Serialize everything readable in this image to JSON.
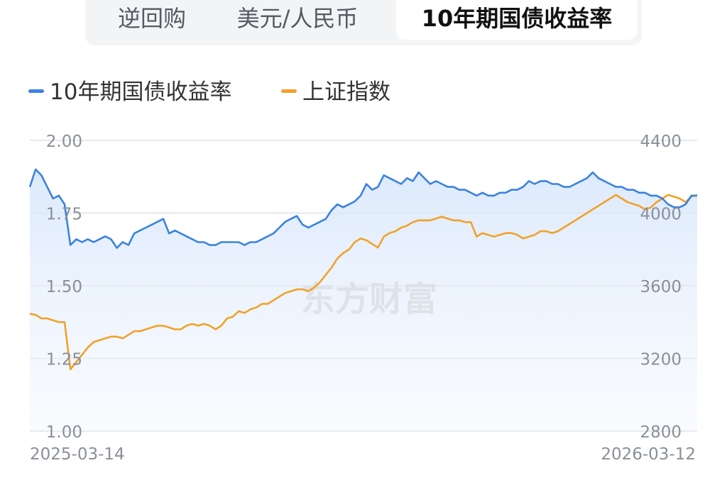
{
  "tabs": [
    {
      "label": "逆回购",
      "active": false
    },
    {
      "label": "美元/人民币",
      "active": false
    },
    {
      "label": "10年期国债收益率",
      "active": true
    }
  ],
  "watermark": "东方财富",
  "colors": {
    "yield": "#3b82e0",
    "index": "#f2a12a",
    "grid": "#e6e8ec"
  },
  "chart_data": {
    "type": "line",
    "legend_placement": "top-left",
    "grid": true,
    "x_start_label": "2025-03-14",
    "x_end_label": "2026-03-12",
    "y_left": {
      "ticks": [
        "2.00",
        "1.75",
        "1.50",
        "1.25",
        "1.00"
      ],
      "range": [
        1.0,
        2.0
      ]
    },
    "y_right": {
      "ticks": [
        "4400",
        "4000",
        "3600",
        "3200",
        "2800"
      ],
      "range": [
        2800,
        4400
      ]
    },
    "series": [
      {
        "name": "10年期国债收益率",
        "axis": "left",
        "color": "#3b82e0",
        "values": [
          1.84,
          1.9,
          1.88,
          1.84,
          1.8,
          1.81,
          1.78,
          1.64,
          1.66,
          1.65,
          1.66,
          1.65,
          1.66,
          1.67,
          1.66,
          1.63,
          1.65,
          1.64,
          1.68,
          1.69,
          1.7,
          1.71,
          1.72,
          1.73,
          1.68,
          1.69,
          1.68,
          1.67,
          1.66,
          1.65,
          1.65,
          1.64,
          1.64,
          1.65,
          1.65,
          1.65,
          1.65,
          1.64,
          1.65,
          1.65,
          1.66,
          1.67,
          1.68,
          1.7,
          1.72,
          1.73,
          1.74,
          1.71,
          1.7,
          1.71,
          1.72,
          1.73,
          1.76,
          1.78,
          1.77,
          1.78,
          1.79,
          1.81,
          1.85,
          1.83,
          1.84,
          1.88,
          1.87,
          1.86,
          1.85,
          1.87,
          1.86,
          1.89,
          1.87,
          1.85,
          1.86,
          1.85,
          1.84,
          1.84,
          1.83,
          1.83,
          1.82,
          1.81,
          1.82,
          1.81,
          1.81,
          1.82,
          1.82,
          1.83,
          1.83,
          1.84,
          1.86,
          1.85,
          1.86,
          1.86,
          1.85,
          1.85,
          1.84,
          1.84,
          1.85,
          1.86,
          1.87,
          1.89,
          1.87,
          1.86,
          1.85,
          1.84,
          1.84,
          1.83,
          1.83,
          1.82,
          1.82,
          1.81,
          1.81,
          1.8,
          1.78,
          1.77,
          1.77,
          1.78,
          1.81,
          1.81
        ]
      },
      {
        "name": "上证指数",
        "axis": "right",
        "color": "#f2a12a",
        "values": [
          3445,
          3440,
          3420,
          3420,
          3410,
          3400,
          3400,
          3140,
          3180,
          3220,
          3260,
          3290,
          3300,
          3310,
          3320,
          3320,
          3310,
          3330,
          3350,
          3350,
          3360,
          3370,
          3380,
          3380,
          3370,
          3360,
          3360,
          3380,
          3390,
          3380,
          3390,
          3380,
          3360,
          3380,
          3420,
          3430,
          3460,
          3450,
          3470,
          3480,
          3500,
          3500,
          3520,
          3540,
          3560,
          3570,
          3580,
          3580,
          3570,
          3590,
          3620,
          3660,
          3700,
          3750,
          3780,
          3800,
          3840,
          3860,
          3850,
          3830,
          3810,
          3870,
          3890,
          3900,
          3920,
          3930,
          3950,
          3960,
          3960,
          3960,
          3970,
          3980,
          3970,
          3960,
          3960,
          3950,
          3950,
          3870,
          3890,
          3880,
          3870,
          3880,
          3890,
          3890,
          3880,
          3860,
          3870,
          3880,
          3900,
          3900,
          3890,
          3900,
          3920,
          3940,
          3960,
          3980,
          4000,
          4020,
          4040,
          4060,
          4080,
          4100,
          4080,
          4060,
          4050,
          4040,
          4020,
          4030,
          4060,
          4080,
          4100,
          4090,
          4080,
          4060,
          4090,
          4100
        ]
      }
    ]
  }
}
